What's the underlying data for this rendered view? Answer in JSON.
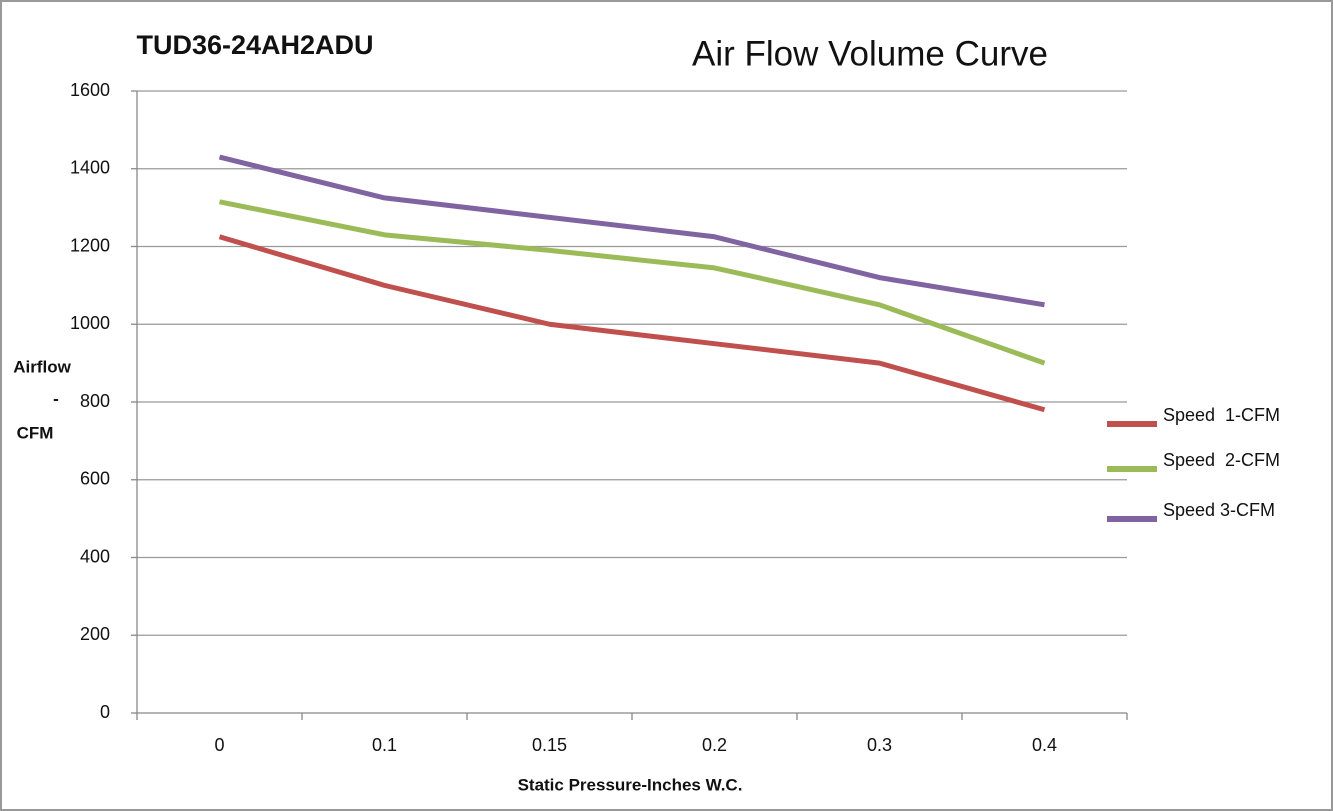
{
  "chart_data": {
    "type": "line",
    "title": "Air Flow Volume Curve",
    "subtitle": "TUD36-24AH2ADU",
    "ylabel_lines": [
      "Airflow",
      "-",
      "CFM"
    ],
    "xlabel": "Static Pressure-Inches W.C.",
    "categories": [
      "0",
      "0.1",
      "0.15",
      "0.2",
      "0.3",
      "0.4"
    ],
    "series": [
      {
        "name": "Speed  1-CFM",
        "color": "#c0504d",
        "values": [
          1225,
          1100,
          1000,
          950,
          900,
          780
        ]
      },
      {
        "name": "Speed  2-CFM",
        "color": "#9bbb59",
        "values": [
          1315,
          1230,
          1190,
          1145,
          1050,
          900
        ]
      },
      {
        "name": "Speed 3-CFM",
        "color": "#8064a2",
        "values": [
          1430,
          1325,
          1275,
          1225,
          1120,
          1050
        ]
      }
    ],
    "ylim": [
      0,
      1600
    ],
    "yticks": [
      0,
      200,
      400,
      600,
      800,
      1000,
      1200,
      1400,
      1600
    ],
    "grid": true,
    "legend": "right"
  }
}
